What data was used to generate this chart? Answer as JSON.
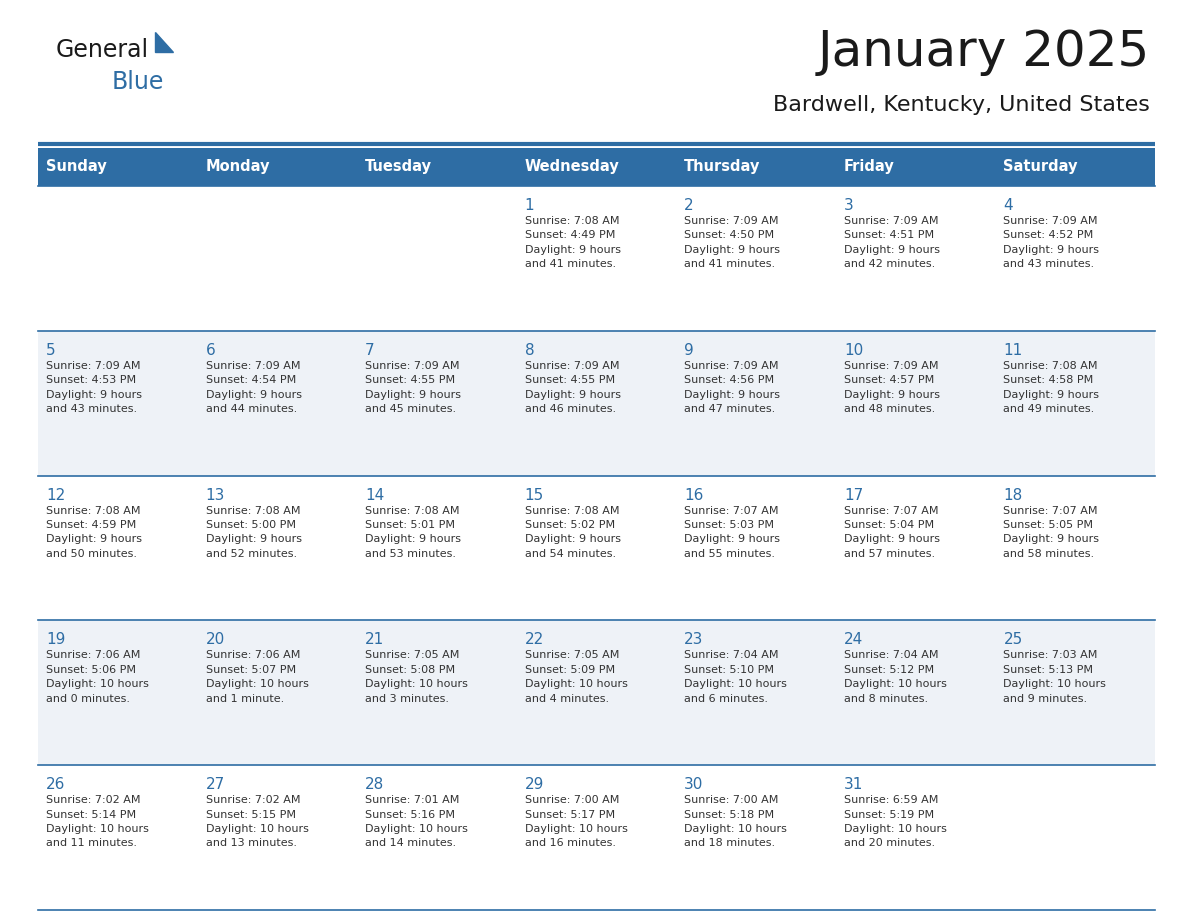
{
  "title": "January 2025",
  "subtitle": "Bardwell, Kentucky, United States",
  "days_of_week": [
    "Sunday",
    "Monday",
    "Tuesday",
    "Wednesday",
    "Thursday",
    "Friday",
    "Saturday"
  ],
  "header_bg": "#2E6DA4",
  "header_text": "#FFFFFF",
  "cell_bg_even": "#FFFFFF",
  "cell_bg_odd": "#EEF2F7",
  "cell_border": "#2E6DA4",
  "day_number_color": "#2E6DA4",
  "cell_text_color": "#333333",
  "title_color": "#1a1a1a",
  "subtitle_color": "#1a1a1a",
  "weeks": [
    [
      {
        "day": null,
        "info": null
      },
      {
        "day": null,
        "info": null
      },
      {
        "day": null,
        "info": null
      },
      {
        "day": 1,
        "info": "Sunrise: 7:08 AM\nSunset: 4:49 PM\nDaylight: 9 hours\nand 41 minutes."
      },
      {
        "day": 2,
        "info": "Sunrise: 7:09 AM\nSunset: 4:50 PM\nDaylight: 9 hours\nand 41 minutes."
      },
      {
        "day": 3,
        "info": "Sunrise: 7:09 AM\nSunset: 4:51 PM\nDaylight: 9 hours\nand 42 minutes."
      },
      {
        "day": 4,
        "info": "Sunrise: 7:09 AM\nSunset: 4:52 PM\nDaylight: 9 hours\nand 43 minutes."
      }
    ],
    [
      {
        "day": 5,
        "info": "Sunrise: 7:09 AM\nSunset: 4:53 PM\nDaylight: 9 hours\nand 43 minutes."
      },
      {
        "day": 6,
        "info": "Sunrise: 7:09 AM\nSunset: 4:54 PM\nDaylight: 9 hours\nand 44 minutes."
      },
      {
        "day": 7,
        "info": "Sunrise: 7:09 AM\nSunset: 4:55 PM\nDaylight: 9 hours\nand 45 minutes."
      },
      {
        "day": 8,
        "info": "Sunrise: 7:09 AM\nSunset: 4:55 PM\nDaylight: 9 hours\nand 46 minutes."
      },
      {
        "day": 9,
        "info": "Sunrise: 7:09 AM\nSunset: 4:56 PM\nDaylight: 9 hours\nand 47 minutes."
      },
      {
        "day": 10,
        "info": "Sunrise: 7:09 AM\nSunset: 4:57 PM\nDaylight: 9 hours\nand 48 minutes."
      },
      {
        "day": 11,
        "info": "Sunrise: 7:08 AM\nSunset: 4:58 PM\nDaylight: 9 hours\nand 49 minutes."
      }
    ],
    [
      {
        "day": 12,
        "info": "Sunrise: 7:08 AM\nSunset: 4:59 PM\nDaylight: 9 hours\nand 50 minutes."
      },
      {
        "day": 13,
        "info": "Sunrise: 7:08 AM\nSunset: 5:00 PM\nDaylight: 9 hours\nand 52 minutes."
      },
      {
        "day": 14,
        "info": "Sunrise: 7:08 AM\nSunset: 5:01 PM\nDaylight: 9 hours\nand 53 minutes."
      },
      {
        "day": 15,
        "info": "Sunrise: 7:08 AM\nSunset: 5:02 PM\nDaylight: 9 hours\nand 54 minutes."
      },
      {
        "day": 16,
        "info": "Sunrise: 7:07 AM\nSunset: 5:03 PM\nDaylight: 9 hours\nand 55 minutes."
      },
      {
        "day": 17,
        "info": "Sunrise: 7:07 AM\nSunset: 5:04 PM\nDaylight: 9 hours\nand 57 minutes."
      },
      {
        "day": 18,
        "info": "Sunrise: 7:07 AM\nSunset: 5:05 PM\nDaylight: 9 hours\nand 58 minutes."
      }
    ],
    [
      {
        "day": 19,
        "info": "Sunrise: 7:06 AM\nSunset: 5:06 PM\nDaylight: 10 hours\nand 0 minutes."
      },
      {
        "day": 20,
        "info": "Sunrise: 7:06 AM\nSunset: 5:07 PM\nDaylight: 10 hours\nand 1 minute."
      },
      {
        "day": 21,
        "info": "Sunrise: 7:05 AM\nSunset: 5:08 PM\nDaylight: 10 hours\nand 3 minutes."
      },
      {
        "day": 22,
        "info": "Sunrise: 7:05 AM\nSunset: 5:09 PM\nDaylight: 10 hours\nand 4 minutes."
      },
      {
        "day": 23,
        "info": "Sunrise: 7:04 AM\nSunset: 5:10 PM\nDaylight: 10 hours\nand 6 minutes."
      },
      {
        "day": 24,
        "info": "Sunrise: 7:04 AM\nSunset: 5:12 PM\nDaylight: 10 hours\nand 8 minutes."
      },
      {
        "day": 25,
        "info": "Sunrise: 7:03 AM\nSunset: 5:13 PM\nDaylight: 10 hours\nand 9 minutes."
      }
    ],
    [
      {
        "day": 26,
        "info": "Sunrise: 7:02 AM\nSunset: 5:14 PM\nDaylight: 10 hours\nand 11 minutes."
      },
      {
        "day": 27,
        "info": "Sunrise: 7:02 AM\nSunset: 5:15 PM\nDaylight: 10 hours\nand 13 minutes."
      },
      {
        "day": 28,
        "info": "Sunrise: 7:01 AM\nSunset: 5:16 PM\nDaylight: 10 hours\nand 14 minutes."
      },
      {
        "day": 29,
        "info": "Sunrise: 7:00 AM\nSunset: 5:17 PM\nDaylight: 10 hours\nand 16 minutes."
      },
      {
        "day": 30,
        "info": "Sunrise: 7:00 AM\nSunset: 5:18 PM\nDaylight: 10 hours\nand 18 minutes."
      },
      {
        "day": 31,
        "info": "Sunrise: 6:59 AM\nSunset: 5:19 PM\nDaylight: 10 hours\nand 20 minutes."
      },
      {
        "day": null,
        "info": null
      }
    ]
  ]
}
